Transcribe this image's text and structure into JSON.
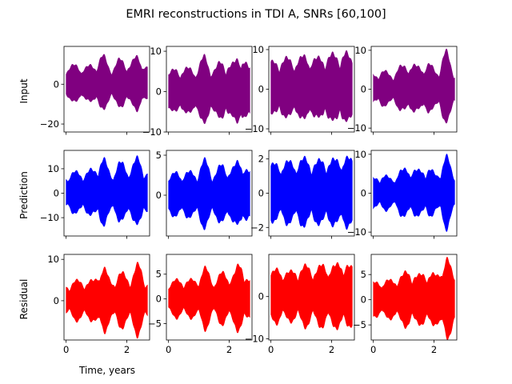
{
  "figure": {
    "title": "EMRI reconstructions in TDI A, SNRs [60,100]",
    "xlabel": "Time, years",
    "row_labels": [
      "Input",
      "Prediction",
      "Residual"
    ]
  },
  "colors": {
    "input": "#800080",
    "prediction": "#0000ff",
    "residual": "#ff0000",
    "axes": "#000000"
  },
  "chart_data": [
    {
      "type": "area",
      "row": "Input",
      "col": 1,
      "series": [
        {
          "color": "#800080",
          "envelope_peaks": [
            9,
            10,
            9,
            10,
            15,
            9,
            13,
            11,
            15,
            9
          ]
        }
      ],
      "xlim": [
        -0.07,
        2.75
      ],
      "ylim": [
        -24,
        19
      ],
      "xticks": [
        0,
        2
      ],
      "yticks": [
        -20,
        0
      ],
      "xlabel": "Time, years",
      "ylabel": "Input"
    },
    {
      "type": "area",
      "row": "Input",
      "col": 2,
      "series": [
        {
          "color": "#800080",
          "envelope_peaks": [
            5,
            6,
            6,
            6,
            9,
            6,
            8,
            7,
            10,
            6
          ]
        }
      ],
      "xlim": [
        -0.07,
        2.75
      ],
      "ylim": [
        -10,
        11.2
      ],
      "xticks": [
        0,
        2
      ],
      "yticks": [
        -10,
        0,
        10
      ]
    },
    {
      "type": "area",
      "row": "Input",
      "col": 3,
      "series": [
        {
          "color": "#800080",
          "envelope_peaks": [
            7,
            8,
            8,
            8,
            9,
            8,
            9,
            9,
            10,
            8
          ]
        }
      ],
      "xlim": [
        -0.07,
        2.75
      ],
      "ylim": [
        -10.8,
        10.8
      ],
      "xticks": [
        0,
        2
      ],
      "yticks": [
        -10,
        0,
        10
      ]
    },
    {
      "type": "area",
      "row": "Input",
      "col": 4,
      "series": [
        {
          "color": "#800080",
          "envelope_peaks": [
            4,
            5,
            4,
            6,
            7,
            6,
            7,
            5,
            10,
            5
          ]
        }
      ],
      "xlim": [
        -0.07,
        2.75
      ],
      "ylim": [
        -11,
        11
      ],
      "xticks": [
        0,
        2
      ],
      "yticks": [
        -10,
        0,
        10
      ]
    },
    {
      "type": "area",
      "row": "Prediction",
      "col": 1,
      "series": [
        {
          "color": "#0000ff",
          "envelope_peaks": [
            8,
            9,
            9,
            10,
            15,
            9,
            13,
            11,
            15,
            9
          ]
        }
      ],
      "xlim": [
        -0.07,
        2.75
      ],
      "ylim": [
        -17.5,
        17.5
      ],
      "xticks": [
        0,
        2
      ],
      "yticks": [
        -10,
        0,
        10
      ],
      "ylabel": "Prediction"
    },
    {
      "type": "area",
      "row": "Prediction",
      "col": 2,
      "series": [
        {
          "color": "#0000ff",
          "envelope_peaks": [
            2.5,
            3,
            3,
            3,
            4.5,
            3,
            4,
            3.5,
            4.8,
            3
          ]
        }
      ],
      "xlim": [
        -0.07,
        2.75
      ],
      "ylim": [
        -5.1,
        5.6
      ],
      "xticks": [
        0,
        2
      ],
      "yticks": [
        0,
        5
      ]
    },
    {
      "type": "area",
      "row": "Prediction",
      "col": 3,
      "series": [
        {
          "color": "#0000ff",
          "envelope_peaks": [
            1.7,
            1.9,
            1.9,
            2,
            2.1,
            1.9,
            2.1,
            2,
            2.3,
            2
          ]
        }
      ],
      "xlim": [
        -0.07,
        2.75
      ],
      "ylim": [
        -2.5,
        2.5
      ],
      "xticks": [
        0,
        2
      ],
      "yticks": [
        -2,
        0,
        2
      ]
    },
    {
      "type": "area",
      "row": "Prediction",
      "col": 4,
      "series": [
        {
          "color": "#0000ff",
          "envelope_peaks": [
            4,
            5,
            4,
            6,
            7,
            6,
            7,
            5,
            10,
            5
          ]
        }
      ],
      "xlim": [
        -0.07,
        2.75
      ],
      "ylim": [
        -11,
        11
      ],
      "xticks": [
        0,
        2
      ],
      "yticks": [
        -10,
        0,
        10
      ]
    },
    {
      "type": "area",
      "row": "Residual",
      "col": 1,
      "series": [
        {
          "color": "#ff0000",
          "envelope_peaks": [
            4,
            5,
            5,
            5,
            9,
            5,
            7,
            6,
            9,
            5
          ]
        }
      ],
      "xlim": [
        -0.07,
        2.75
      ],
      "ylim": [
        -9.5,
        11.2
      ],
      "xticks": [
        0,
        2
      ],
      "yticks": [
        0,
        10
      ],
      "xlabel": "Time, years",
      "ylabel": "Residual"
    },
    {
      "type": "area",
      "row": "Residual",
      "col": 2,
      "series": [
        {
          "color": "#ff0000",
          "envelope_peaks": [
            3.5,
            4,
            4,
            4,
            6.5,
            4,
            5.5,
            5,
            7.5,
            4
          ]
        }
      ],
      "xlim": [
        -0.07,
        2.75
      ],
      "ylim": [
        -8.3,
        9
      ],
      "xticks": [
        0,
        2
      ],
      "yticks": [
        -5,
        0,
        5
      ]
    },
    {
      "type": "area",
      "row": "Residual",
      "col": 3,
      "series": [
        {
          "color": "#ff0000",
          "envelope_peaks": [
            6,
            7,
            6,
            7,
            7.5,
            7,
            8,
            7.5,
            9,
            7
          ]
        }
      ],
      "xlim": [
        -0.07,
        2.75
      ],
      "ylim": [
        -10.3,
        10
      ],
      "xticks": [
        0,
        2
      ],
      "yticks": [
        -10,
        0
      ]
    },
    {
      "type": "area",
      "row": "Residual",
      "col": 4,
      "series": [
        {
          "color": "#ff0000",
          "envelope_peaks": [
            3.5,
            4,
            4,
            5,
            6,
            5,
            6,
            5,
            9,
            5
          ]
        }
      ],
      "xlim": [
        -0.07,
        2.75
      ],
      "ylim": [
        -8,
        9
      ],
      "xticks": [
        0,
        2
      ],
      "yticks": [
        -5,
        0,
        5
      ]
    }
  ]
}
